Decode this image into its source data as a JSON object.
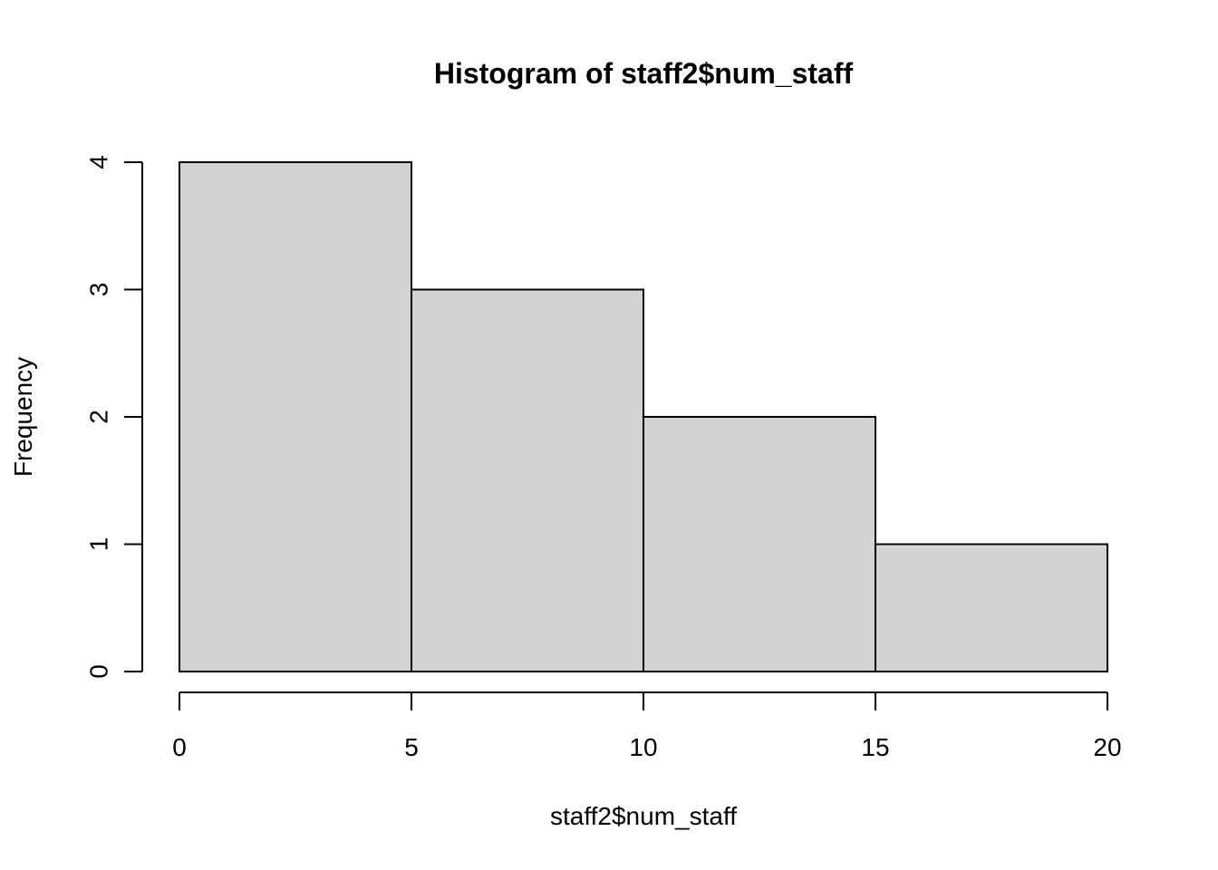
{
  "chart_data": {
    "type": "bar",
    "title": "Histogram of staff2$num_staff",
    "xlabel": "staff2$num_staff",
    "ylabel": "Frequency",
    "bins": [
      {
        "x0": 0,
        "x1": 5,
        "count": 4
      },
      {
        "x0": 5,
        "x1": 10,
        "count": 3
      },
      {
        "x0": 10,
        "x1": 15,
        "count": 2
      },
      {
        "x0": 15,
        "x1": 20,
        "count": 1
      }
    ],
    "xlim": [
      0,
      20
    ],
    "ylim": [
      0,
      4
    ],
    "x_ticks": [
      "0",
      "5",
      "10",
      "15",
      "20"
    ],
    "y_ticks": [
      "0",
      "1",
      "2",
      "3",
      "4"
    ],
    "grid": false,
    "legend": "none",
    "bar_color": "#d3d3d3",
    "edge_color": "#000000"
  }
}
